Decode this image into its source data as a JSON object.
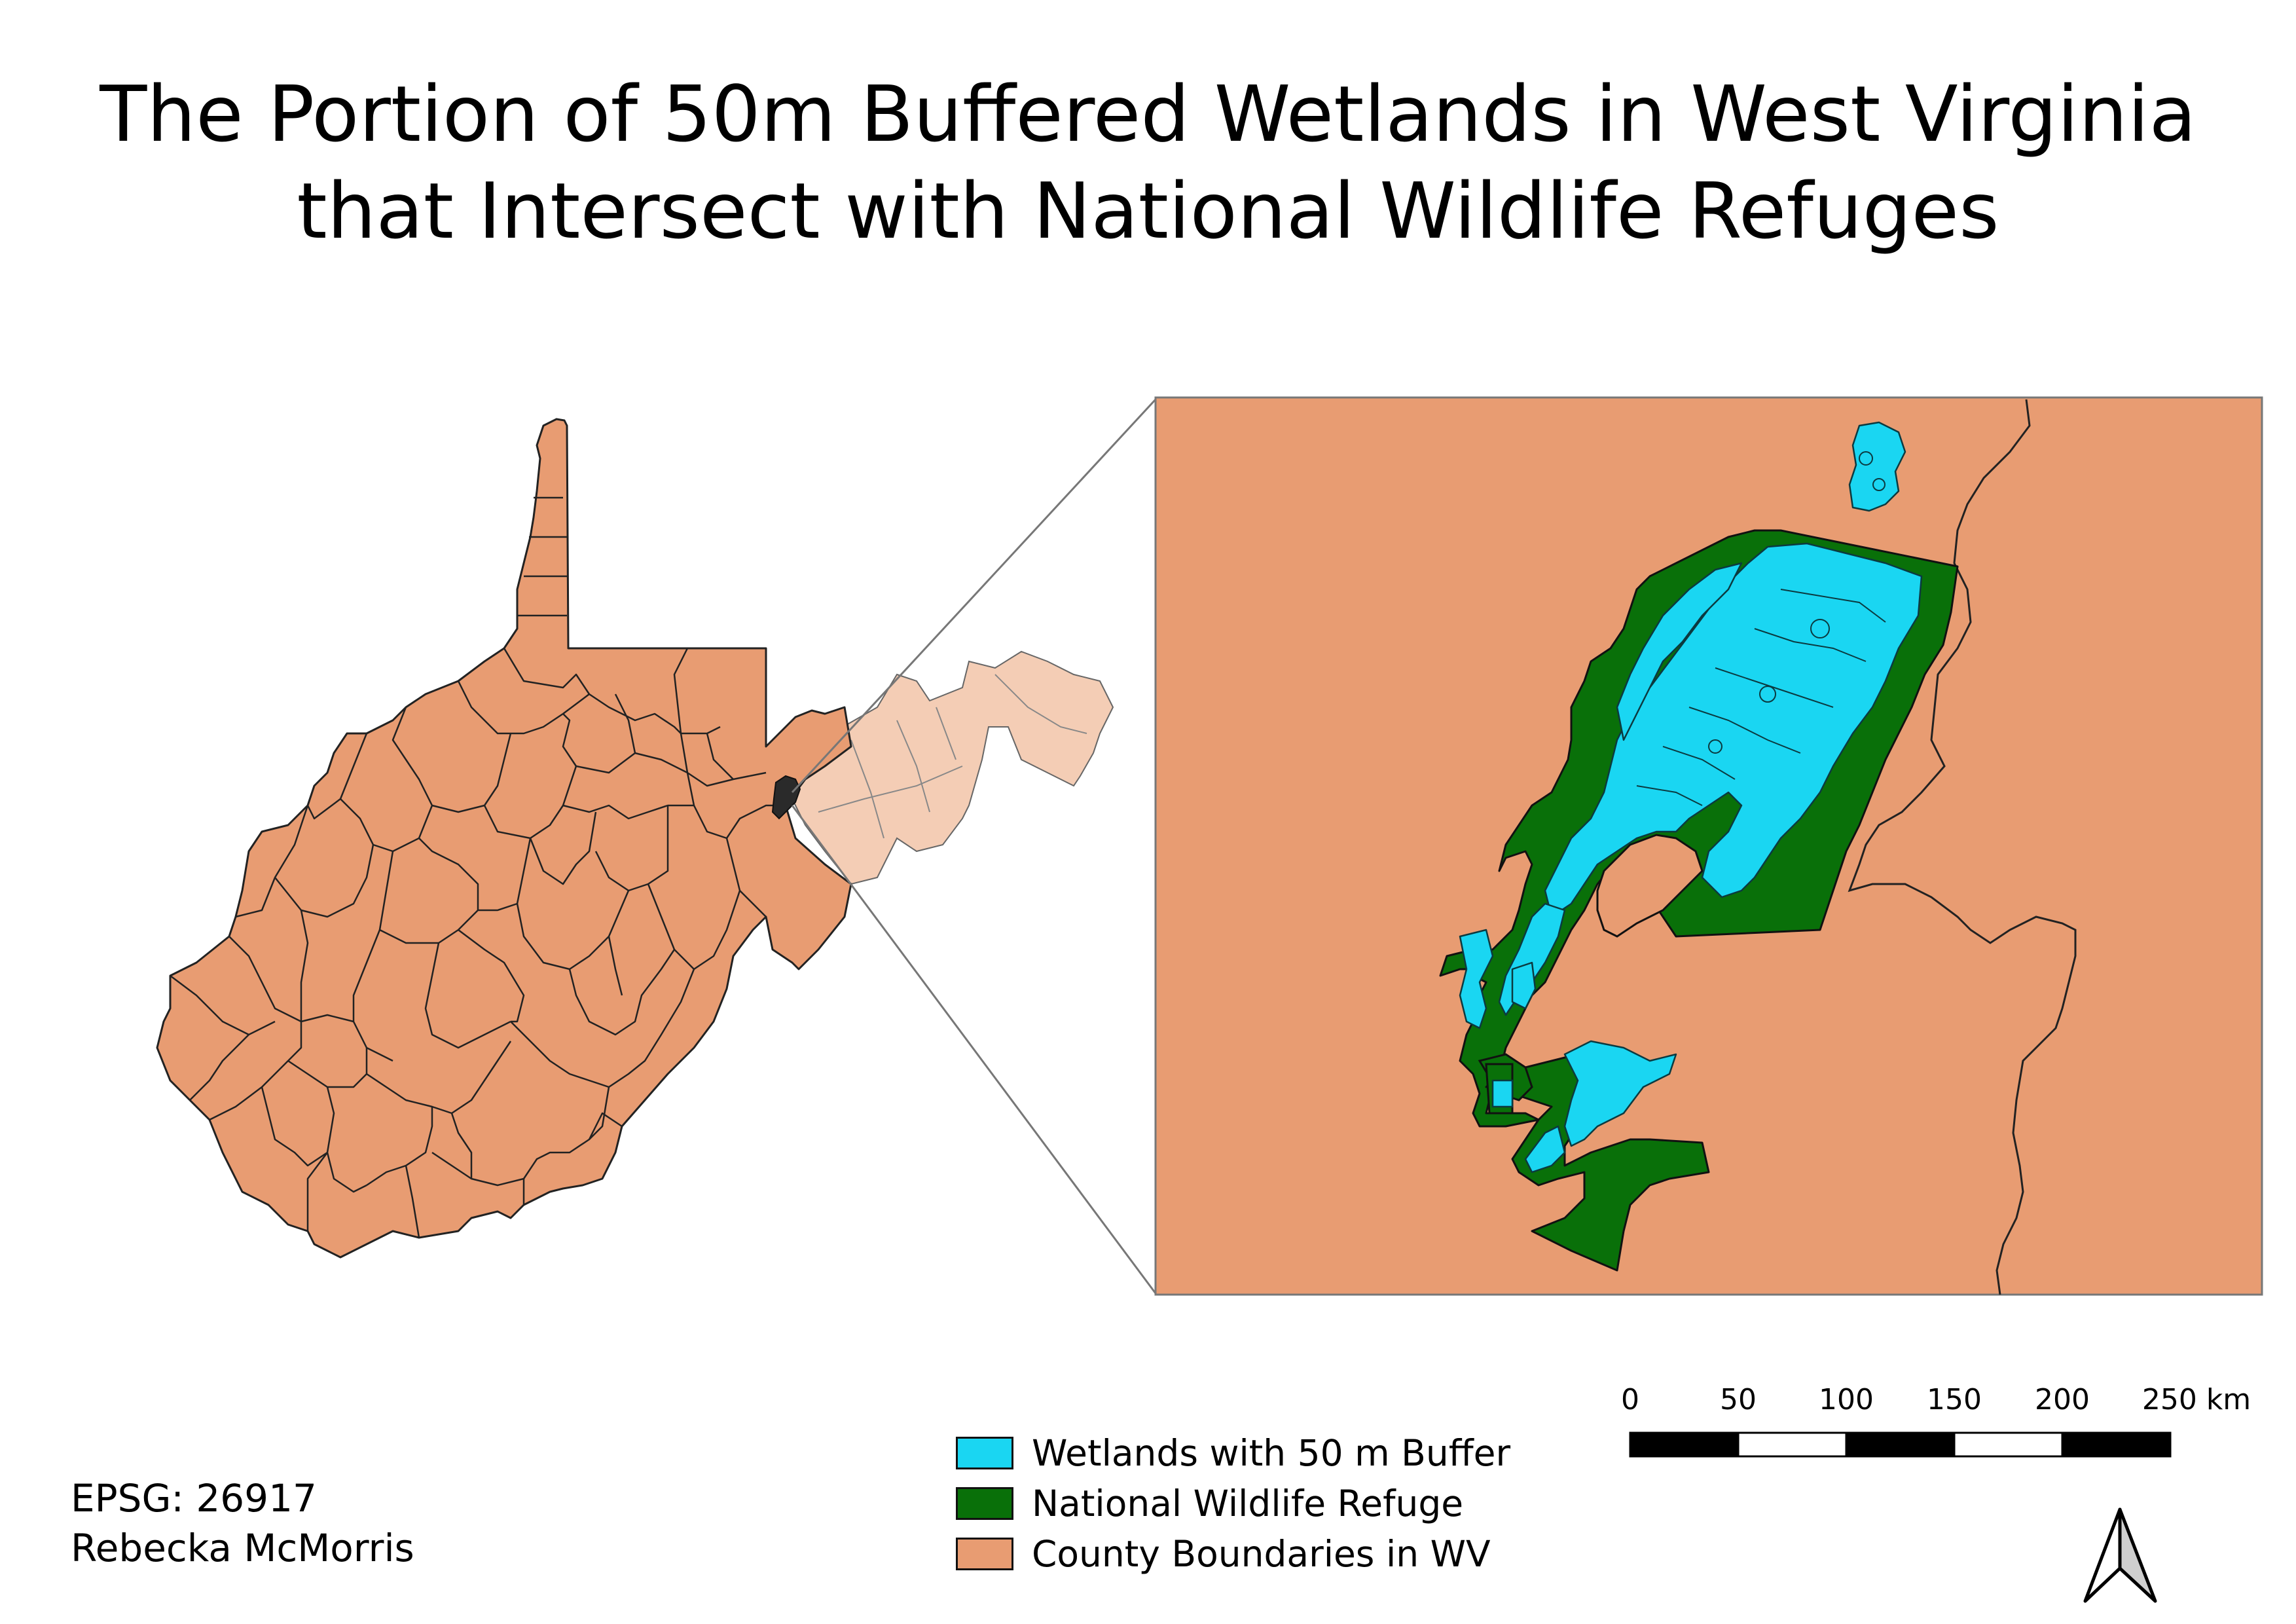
{
  "title": {
    "line1": "The Portion of 50m Buffered Wetlands in West Virginia",
    "line2": "that Intersect with National Wildlife Refuges"
  },
  "credits": {
    "epsg": "EPSG: 26917",
    "author": "Rebecka McMorris"
  },
  "legend": {
    "items": [
      {
        "label": "Wetlands with 50 m Buffer",
        "color": "#1ad6f2"
      },
      {
        "label": "National Wildlife Refuge",
        "color": "#097009"
      },
      {
        "label": "County Boundaries in WV",
        "color": "#e89c72"
      }
    ]
  },
  "scale_bar": {
    "labels": [
      "0",
      "50",
      "100",
      "150",
      "200",
      "250 km"
    ]
  },
  "colors": {
    "county_fill": "#e89c72",
    "county_fill_faded": "#f4cdb5",
    "wetland": "#1ad6f2",
    "refuge": "#097009",
    "outline": "#222222",
    "connector": "#777777"
  },
  "north_arrow": {
    "icon": "north-arrow-icon"
  }
}
